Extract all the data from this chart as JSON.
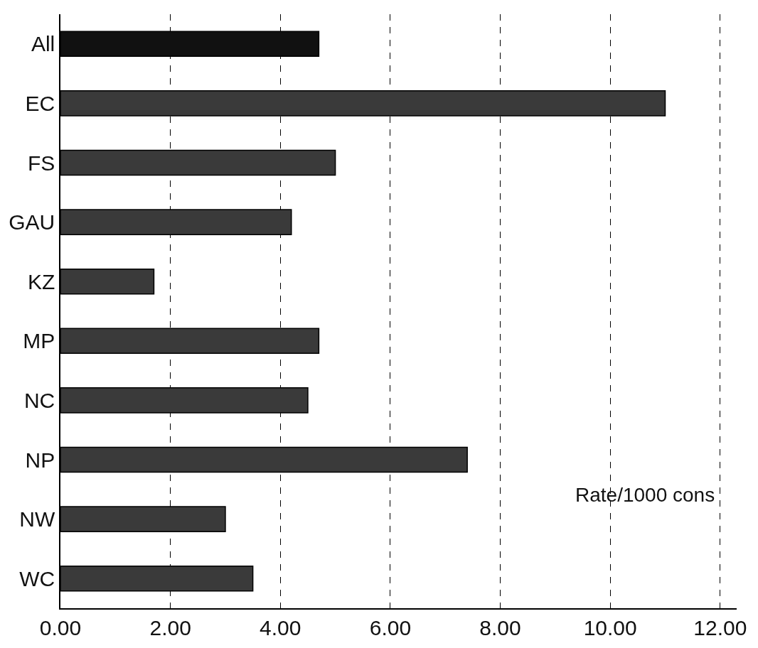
{
  "chart_data": {
    "type": "bar",
    "orientation": "horizontal",
    "xlabel": "Rate/1000 cons",
    "categories": [
      "All",
      "EC",
      "FS",
      "GAU",
      "KZ",
      "MP",
      "NC",
      "NP",
      "NW",
      "WC"
    ],
    "values": [
      4.7,
      11.0,
      5.0,
      4.2,
      1.7,
      4.7,
      4.5,
      7.4,
      3.0,
      3.5
    ],
    "colors": [
      "#111111",
      "#3a3a3a",
      "#3a3a3a",
      "#3a3a3a",
      "#3a3a3a",
      "#3a3a3a",
      "#3a3a3a",
      "#3a3a3a",
      "#3a3a3a",
      "#3a3a3a"
    ],
    "xlim": [
      0,
      12.3
    ],
    "xticks": [
      {
        "value": 0,
        "label": "0.00"
      },
      {
        "value": 2,
        "label": "2.00"
      },
      {
        "value": 4,
        "label": "4.00"
      },
      {
        "value": 6,
        "label": "6.00"
      },
      {
        "value": 8,
        "label": "8.00"
      },
      {
        "value": 10,
        "label": "10.00"
      },
      {
        "value": 12,
        "label": "12.00"
      }
    ],
    "grid": "x",
    "line_style": "dashed"
  }
}
